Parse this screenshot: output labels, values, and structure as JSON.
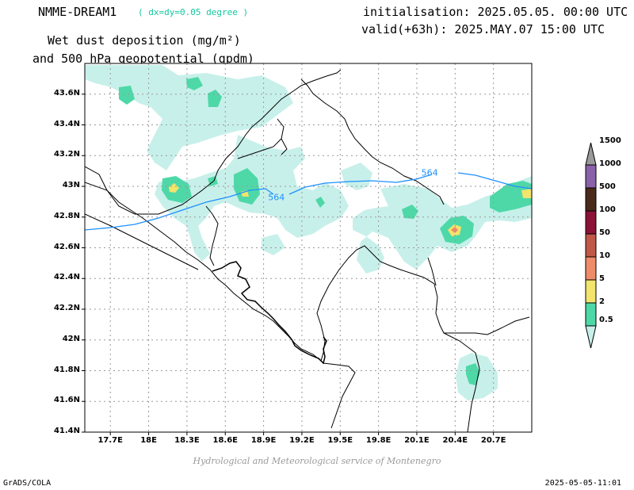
{
  "header": {
    "model_name": "NMME-DREAM1",
    "model_resolution": "( dx=dy=0.05 degree )",
    "initialisation": "initialisation: 2025.05.05. 00:00 UTC",
    "valid": "valid(+63h): 2025.MAY.07 15:00 UTC",
    "title_line1": "Wet dust deposition (mg/m²)",
    "title_line2": "and 500 hPa geopotential (gpdm)"
  },
  "map": {
    "lon_range": [
      17.5,
      21.0
    ],
    "lat_range": [
      41.4,
      43.8
    ],
    "lat_ticks": [
      {
        "lat": 43.6,
        "label": "43.6N"
      },
      {
        "lat": 43.4,
        "label": "43.4N"
      },
      {
        "lat": 43.2,
        "label": "43.2N"
      },
      {
        "lat": 43.0,
        "label": "43N"
      },
      {
        "lat": 42.8,
        "label": "42.8N"
      },
      {
        "lat": 42.6,
        "label": "42.6N"
      },
      {
        "lat": 42.4,
        "label": "42.4N"
      },
      {
        "lat": 42.2,
        "label": "42.2N"
      },
      {
        "lat": 42.0,
        "label": "42N"
      },
      {
        "lat": 41.8,
        "label": "41.8N"
      },
      {
        "lat": 41.6,
        "label": "41.6N"
      },
      {
        "lat": 41.4,
        "label": "41.4N"
      }
    ],
    "lon_ticks": [
      {
        "lon": 17.7,
        "label": "17.7E"
      },
      {
        "lon": 18.0,
        "label": "18E"
      },
      {
        "lon": 18.3,
        "label": "18.3E"
      },
      {
        "lon": 18.6,
        "label": "18.6E"
      },
      {
        "lon": 18.9,
        "label": "18.9E"
      },
      {
        "lon": 19.2,
        "label": "19.2E"
      },
      {
        "lon": 19.5,
        "label": "19.5E"
      },
      {
        "lon": 19.8,
        "label": "19.8E"
      },
      {
        "lon": 20.1,
        "label": "20.1E"
      },
      {
        "lon": 20.4,
        "label": "20.4E"
      },
      {
        "lon": 20.7,
        "label": "20.7E"
      }
    ],
    "grid": true,
    "contour_labels": [
      {
        "text": "564",
        "lon": 19.0,
        "lat": 42.93
      },
      {
        "text": "564",
        "lon": 20.2,
        "lat": 43.09
      }
    ],
    "contour_color": "#1e90ff"
  },
  "colorbar": {
    "levels": [
      "0.5",
      "2",
      "5",
      "10",
      "50",
      "100",
      "500",
      "1000",
      "1500"
    ],
    "colors": [
      "#c8f0ea",
      "#4ed8a8",
      "#f2e46c",
      "#ee8c6a",
      "#c05848",
      "#8c1238",
      "#4a2a1a",
      "#8a62a8",
      "#9a9a9a"
    ]
  },
  "credit": "Hydrological and Meteorological service of Montenegro",
  "footer": {
    "left": "GrADS/COLA",
    "right": "2025-05-05-11:01"
  }
}
